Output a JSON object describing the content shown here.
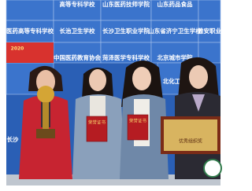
{
  "backdrop": {
    "labels": [
      "高等专科学校",
      "山东医药技师学院",
      "山东药品食品",
      "医药高等专科学校",
      "长治卫生学校",
      "长沙卫生职业学院",
      "山东省济宁卫生学校",
      "雅安职业",
      "2020",
      "中国医药教育协会",
      "菏泽医学专科学校",
      "北京城市学院",
      "北化工",
      "长沙"
    ]
  },
  "items": {
    "certificate_left": "荣誉证书",
    "certificate_right": "荣誉证书",
    "plaque": "优秀组织奖"
  }
}
